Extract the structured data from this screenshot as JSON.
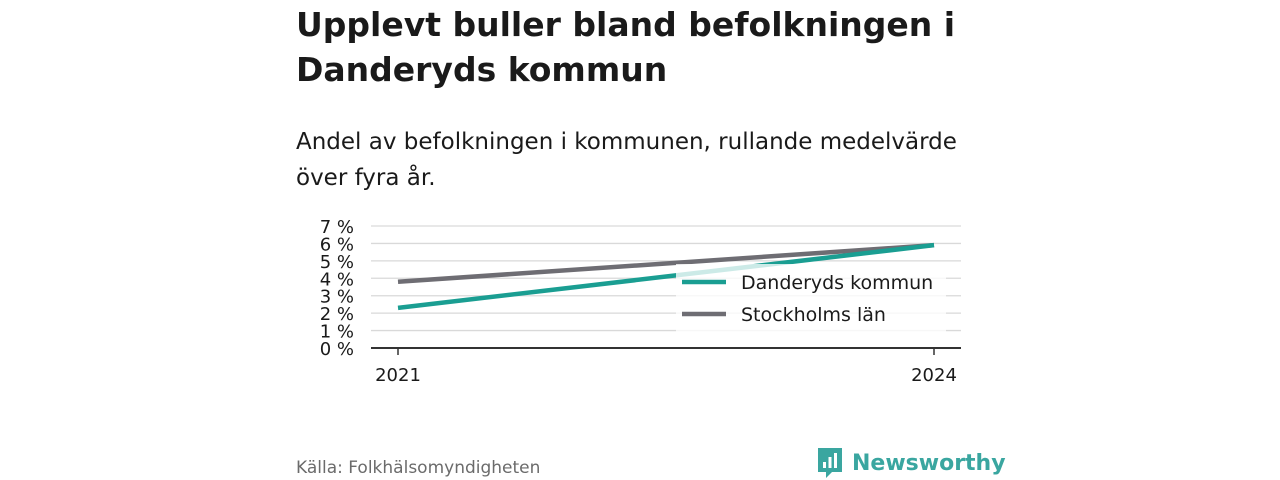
{
  "title": "Upplevt buller bland befolkningen i Danderyds kommun",
  "subtitle": "Andel av befolkningen i kommunen, rullande medelvärde över fyra år.",
  "source": "Källa: Folkhälsomyndigheten",
  "brand": {
    "name": "Newsworthy",
    "color": "#3aa6a0"
  },
  "chart_data": {
    "type": "line",
    "x": [
      "2021",
      "2024"
    ],
    "series": [
      {
        "name": "Danderyds kommun",
        "values": [
          2.3,
          5.9
        ],
        "color": "#1a9e92"
      },
      {
        "name": "Stockholms län",
        "values": [
          3.8,
          5.9
        ],
        "color": "#6e6d73"
      }
    ],
    "y_ticks": [
      0,
      1,
      2,
      3,
      4,
      5,
      6,
      7
    ],
    "y_tick_labels": [
      "0 %",
      "1 %",
      "2 %",
      "3 %",
      "4 %",
      "5 %",
      "6 %",
      "7 %"
    ],
    "ylim": [
      0,
      7
    ],
    "grid": true,
    "legend_position": "right",
    "title": "",
    "xlabel": "",
    "ylabel": ""
  }
}
